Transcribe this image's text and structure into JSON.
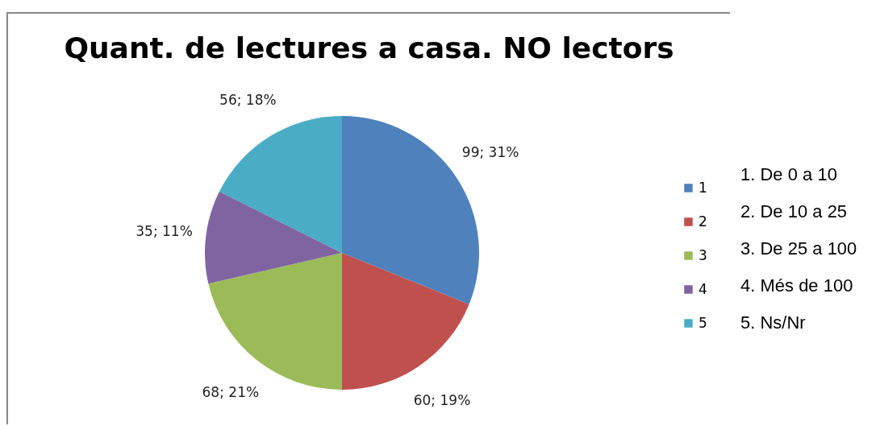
{
  "chart_data": {
    "type": "pie",
    "title": "Quant. de lectures a casa. NO lectors",
    "categories": [
      "1",
      "2",
      "3",
      "4",
      "5"
    ],
    "values": [
      99,
      60,
      68,
      35,
      56
    ],
    "colors": [
      "#4f81bd",
      "#c0504d",
      "#9bbb59",
      "#8064a2",
      "#4bacc6"
    ],
    "value_labels": [
      "99; 31%",
      "60; 19%",
      "68; 21%",
      "35; 11%",
      "56; 18%"
    ],
    "legend": "right",
    "annotations": [
      "1. De 0 a 10",
      "2. De 10 a 25",
      "3. De 25 a 100",
      "4. Més de 100",
      "5. Ns/Nr"
    ]
  }
}
